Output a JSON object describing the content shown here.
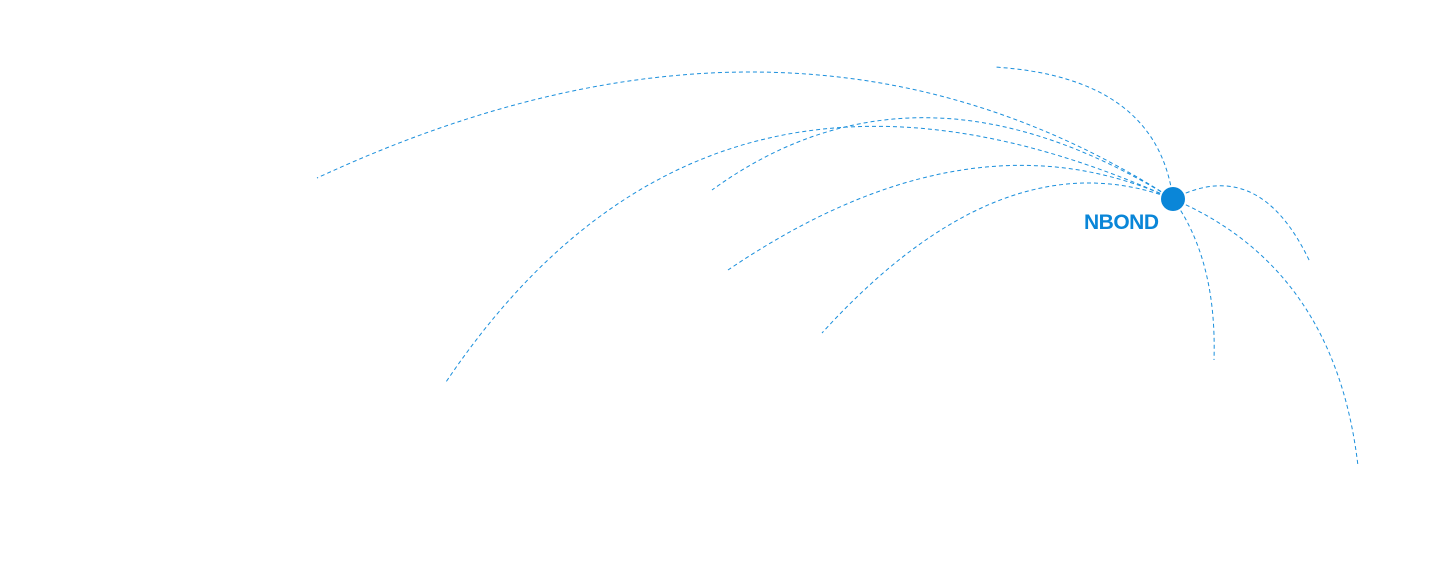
{
  "hub": {
    "label": "NBOND",
    "color": "#0a86d8"
  },
  "connections": {
    "count": 9,
    "style": "dashed",
    "color": "#1a8fdc"
  }
}
